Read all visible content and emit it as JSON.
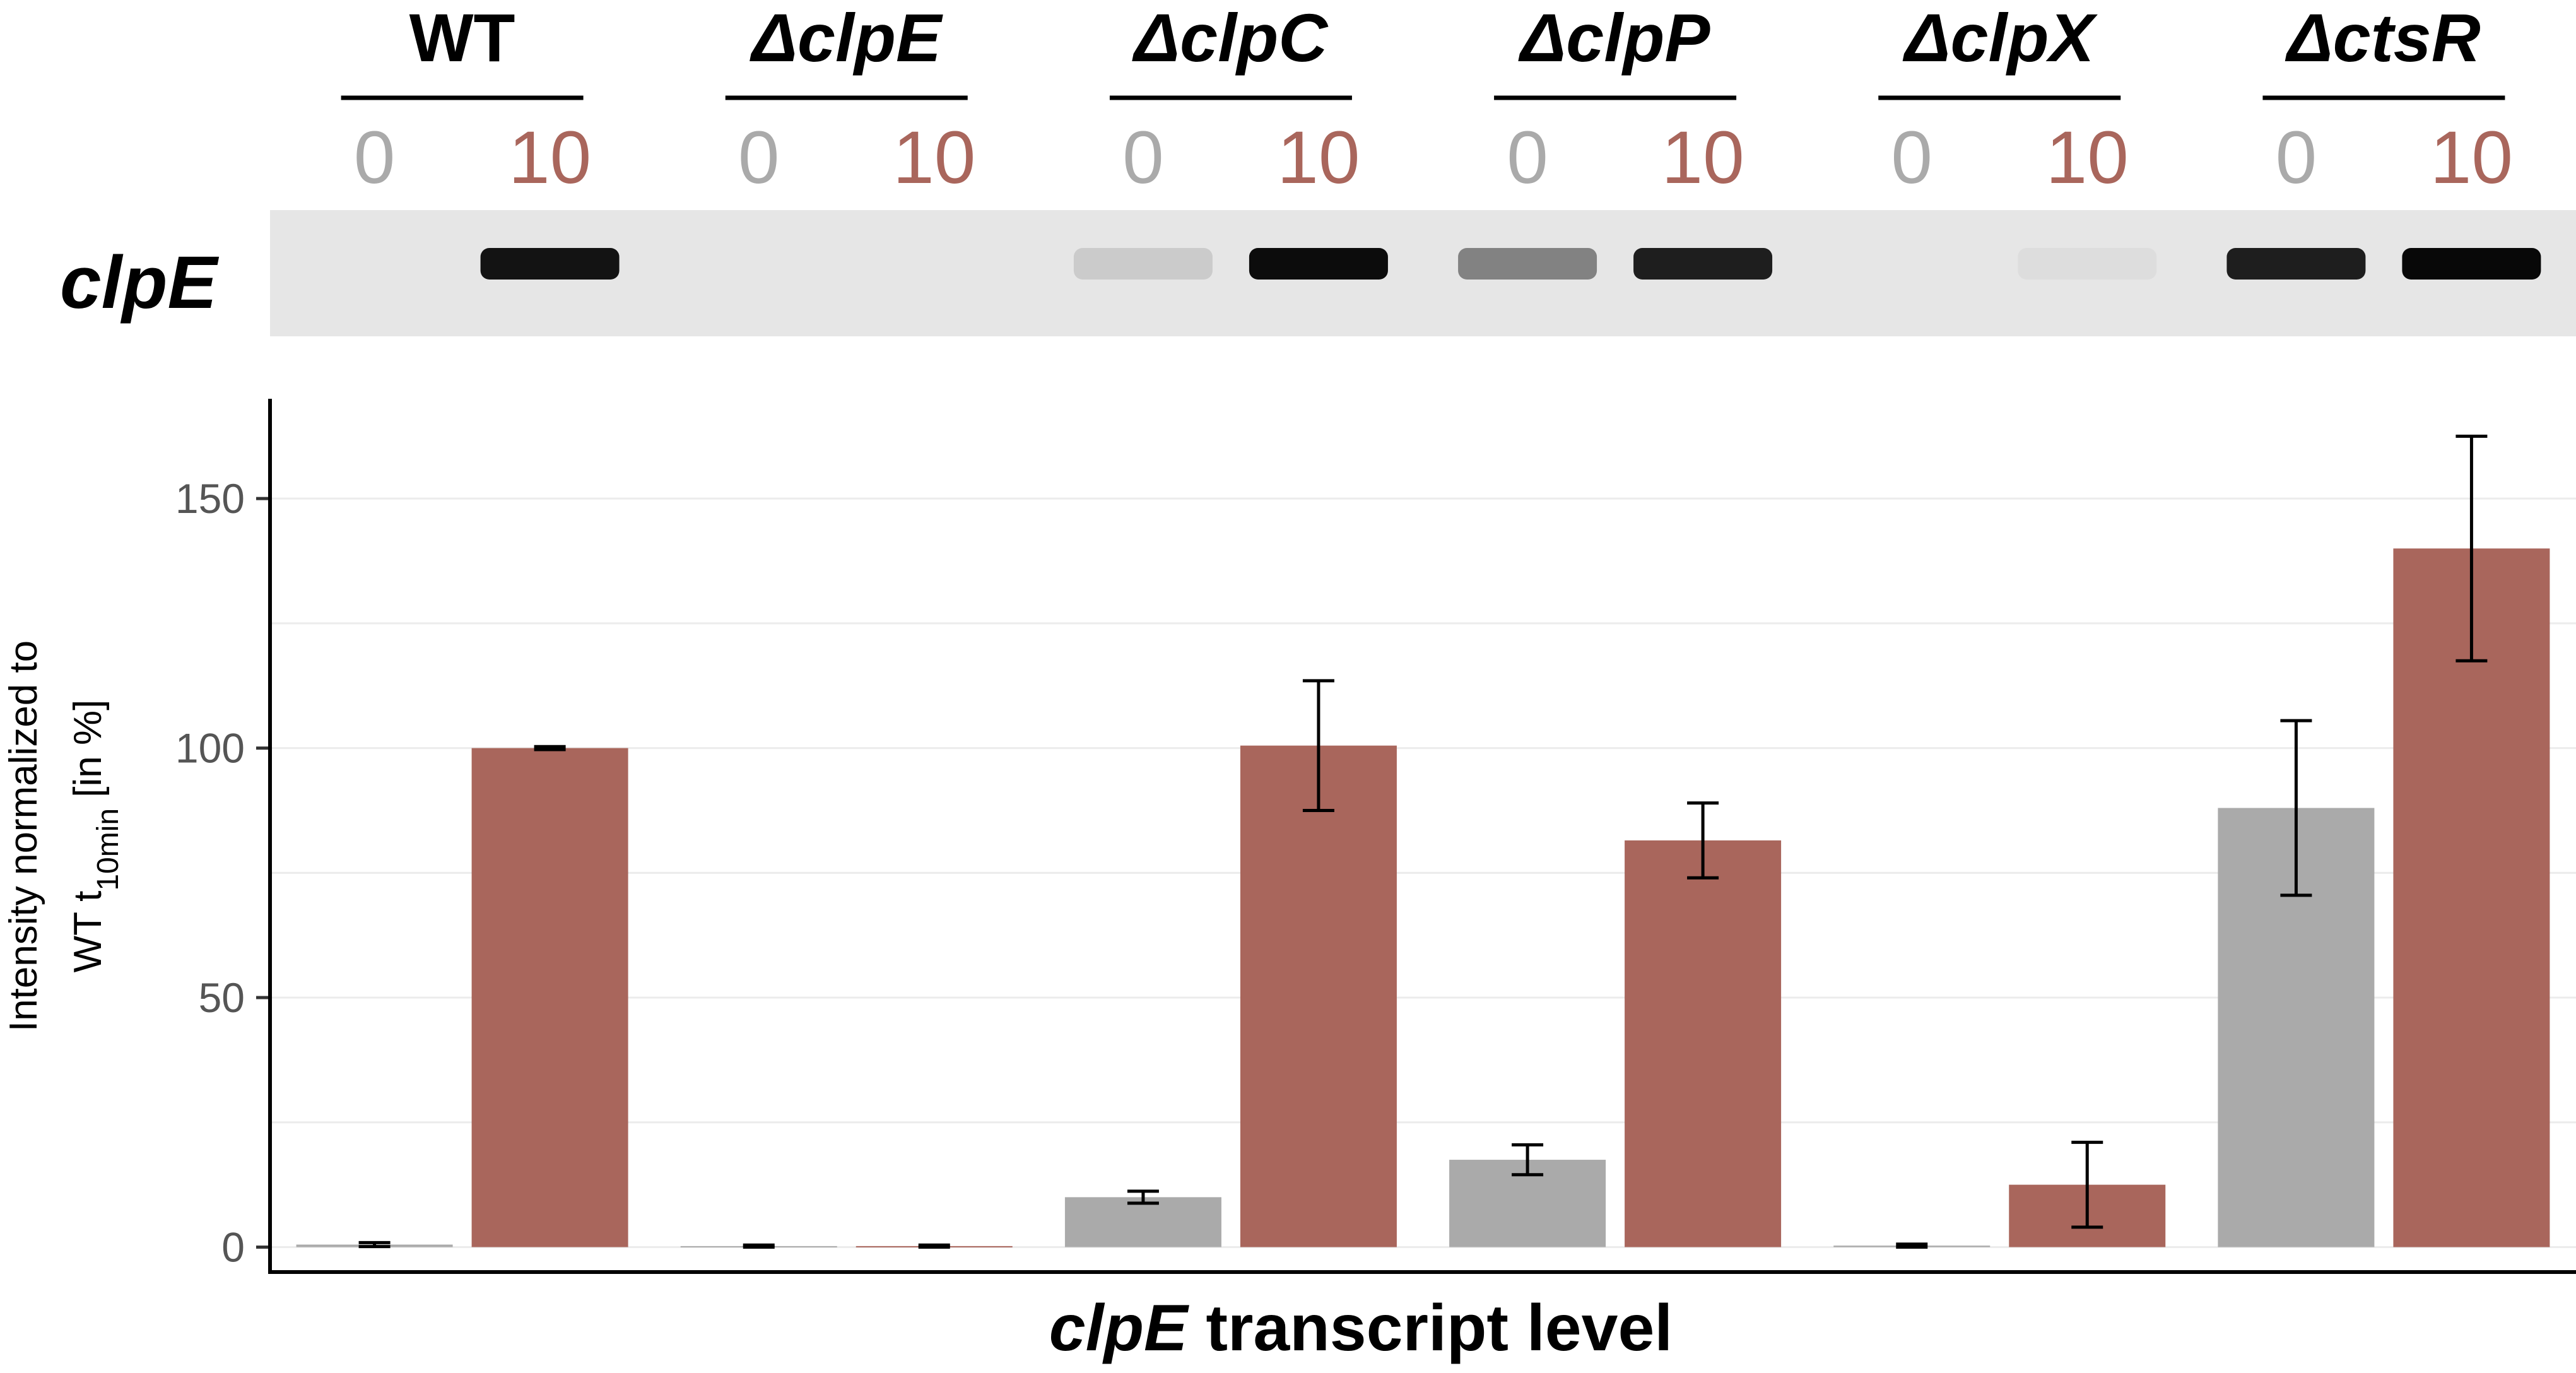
{
  "colors": {
    "t0": "#aaaaaa",
    "t10": "#a9665c",
    "blot_bg": "#e6e6e6",
    "grid": "#ececec"
  },
  "blot": {
    "gene_label": "clpE",
    "band_intensities": [
      0,
      0.95,
      0,
      0,
      0.12,
      0.98,
      0.45,
      0.9,
      0,
      0.04,
      0.9,
      1.0
    ]
  },
  "chart_data": {
    "type": "bar",
    "categories": [
      "WT",
      "ΔclpE",
      "ΔclpC",
      "ΔclpP",
      "ΔclpX",
      "ΔctsR"
    ],
    "time_labels": [
      "0",
      "10"
    ],
    "series": [
      {
        "values": [
          0.5,
          0.2,
          10,
          17.5,
          0.3,
          88
        ],
        "errors": [
          0.4,
          0.2,
          1.2,
          3,
          0.3,
          17.5
        ]
      },
      {
        "values": [
          100,
          0.2,
          100.5,
          81.5,
          12.5,
          140
        ],
        "errors": [
          0.3,
          0.2,
          13,
          7.5,
          8.5,
          22.5
        ]
      }
    ],
    "xlabel_italic": "clpE",
    "xlabel_rest": " transcript level",
    "ylabel_line1": "Intensity normalized to",
    "ylabel_line2_prefix": "WT t",
    "ylabel_line2_sub": "10min",
    "ylabel_line2_suffix": " [in %]",
    "yticks": [
      "0",
      "50",
      "100",
      "150"
    ],
    "ylim": [
      -5,
      170
    ],
    "grid": "horizontal"
  }
}
